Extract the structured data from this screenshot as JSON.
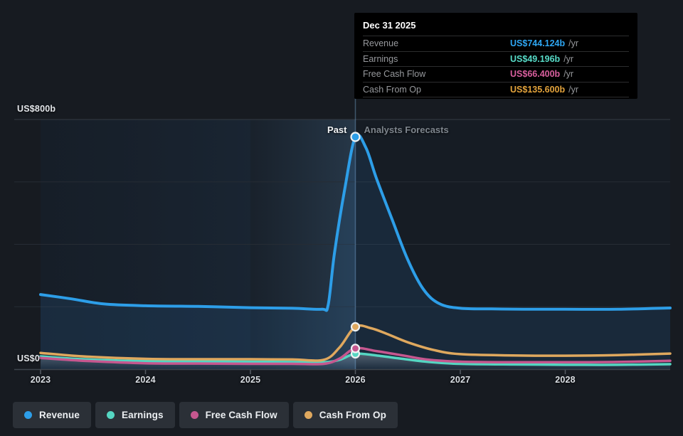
{
  "page": {
    "background": "#171b21"
  },
  "tooltip": {
    "title": "Dec 31 2025",
    "rows": [
      {
        "label": "Revenue",
        "value": "US$744.124b",
        "unit": "/yr",
        "color": "#2ea6f2"
      },
      {
        "label": "Earnings",
        "value": "US$49.196b",
        "unit": "/yr",
        "color": "#57dcc8"
      },
      {
        "label": "Free Cash Flow",
        "value": "US$66.400b",
        "unit": "/yr",
        "color": "#d95f9e"
      },
      {
        "label": "Cash From Op",
        "value": "US$135.600b",
        "unit": "/yr",
        "color": "#e3a33c"
      }
    ]
  },
  "chart_data": {
    "type": "line",
    "title": "",
    "x_range": [
      2023,
      2029
    ],
    "x_ticks": [
      2023,
      2024,
      2025,
      2026,
      2027,
      2028
    ],
    "x_tick_labels": [
      "2023",
      "2024",
      "2025",
      "2026",
      "2027",
      "2028"
    ],
    "y_axis": {
      "ylim": [
        0,
        800
      ],
      "gridline_step": 200,
      "top_label": "US$800b",
      "zero_label": "US$0",
      "unit": "US$ billions"
    },
    "grid": true,
    "legend_position": "bottom-left",
    "divider": {
      "year": 2026,
      "past_label": "Past",
      "forecast_label": "Analysts Forecasts"
    },
    "highlight_band": [
      2025,
      2026
    ],
    "series": [
      {
        "name": "Revenue",
        "color": "#2d9ee8",
        "marker_value": 744.124,
        "area": "blue-fill",
        "points": [
          [
            2023,
            239
          ],
          [
            2023.3,
            225
          ],
          [
            2023.6,
            209
          ],
          [
            2024,
            203
          ],
          [
            2024.5,
            201
          ],
          [
            2025,
            197
          ],
          [
            2025.4,
            195
          ],
          [
            2025.68,
            192
          ],
          [
            2025.74,
            205
          ],
          [
            2025.8,
            370
          ],
          [
            2025.9,
            580
          ],
          [
            2026,
            744.124
          ],
          [
            2026.1,
            710
          ],
          [
            2026.2,
            612
          ],
          [
            2026.35,
            480
          ],
          [
            2026.5,
            350
          ],
          [
            2026.65,
            255
          ],
          [
            2026.8,
            210
          ],
          [
            2027,
            195
          ],
          [
            2027.3,
            193
          ],
          [
            2027.6,
            192
          ],
          [
            2028,
            192
          ],
          [
            2028.5,
            192
          ],
          [
            2029,
            196
          ]
        ]
      },
      {
        "name": "Earnings",
        "color": "#55d6c2",
        "marker_value": 49.196,
        "area": "under-glow",
        "points": [
          [
            2023,
            41
          ],
          [
            2023.4,
            32
          ],
          [
            2024,
            26
          ],
          [
            2024.5,
            25
          ],
          [
            2025,
            24
          ],
          [
            2025.4,
            23
          ],
          [
            2025.7,
            22
          ],
          [
            2025.85,
            30
          ],
          [
            2026,
            49.196
          ],
          [
            2026.2,
            44
          ],
          [
            2026.45,
            33
          ],
          [
            2026.7,
            23
          ],
          [
            2027,
            17
          ],
          [
            2027.5,
            15
          ],
          [
            2028,
            14
          ],
          [
            2028.5,
            14
          ],
          [
            2029,
            16
          ]
        ]
      },
      {
        "name": "Free Cash Flow",
        "color": "#c6578f",
        "marker_value": 66.4,
        "area": "none",
        "points": [
          [
            2023,
            36
          ],
          [
            2023.4,
            27
          ],
          [
            2024,
            19
          ],
          [
            2024.5,
            18
          ],
          [
            2025,
            17
          ],
          [
            2025.4,
            17
          ],
          [
            2025.7,
            17
          ],
          [
            2025.85,
            34
          ],
          [
            2026,
            66.4
          ],
          [
            2026.2,
            58
          ],
          [
            2026.45,
            44
          ],
          [
            2026.7,
            30
          ],
          [
            2027,
            24
          ],
          [
            2027.5,
            22
          ],
          [
            2028,
            22
          ],
          [
            2028.5,
            23
          ],
          [
            2029,
            27
          ]
        ]
      },
      {
        "name": "Cash From Op",
        "color": "#dfa85e",
        "marker_value": 135.6,
        "area": "none",
        "points": [
          [
            2023,
            52
          ],
          [
            2023.4,
            41
          ],
          [
            2024,
            33
          ],
          [
            2024.5,
            32
          ],
          [
            2025,
            32
          ],
          [
            2025.4,
            31
          ],
          [
            2025.7,
            30
          ],
          [
            2025.85,
            70
          ],
          [
            2026,
            135.6
          ],
          [
            2026.15,
            131
          ],
          [
            2026.3,
            113
          ],
          [
            2026.5,
            86
          ],
          [
            2026.75,
            61
          ],
          [
            2027,
            48
          ],
          [
            2027.5,
            44
          ],
          [
            2028,
            43
          ],
          [
            2028.5,
            45
          ],
          [
            2029,
            50
          ]
        ]
      }
    ]
  }
}
